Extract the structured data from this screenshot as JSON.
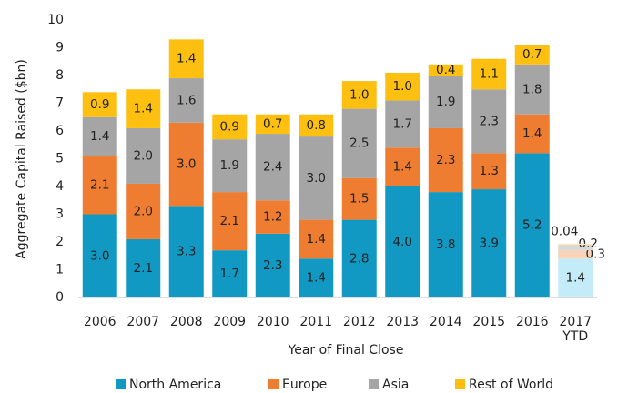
{
  "chart_data": {
    "type": "stacked_bar",
    "x_label": "Year of Final Close",
    "y_label": "Aggregate Capital Raised ($bn)",
    "categories": [
      "2006",
      "2007",
      "2008",
      "2009",
      "2010",
      "2011",
      "2012",
      "2013",
      "2014",
      "2015",
      "2016",
      "2017 YTD"
    ],
    "ylim": [
      0,
      10
    ],
    "yticks": [
      0,
      1,
      2,
      3,
      4,
      5,
      6,
      7,
      8,
      9,
      10
    ],
    "grid": false,
    "legend": "bottom",
    "series": [
      {
        "name": "North America",
        "color": "#1199c4",
        "colors": [
          "#1199c4",
          "#1199c4",
          "#1199c4",
          "#1199c4",
          "#1199c4",
          "#1199c4",
          "#1199c4",
          "#1199c4",
          "#1199c4",
          "#1199c4",
          "#1199c4",
          "#c4ecf8"
        ],
        "values": [
          3.0,
          2.1,
          3.3,
          1.7,
          2.3,
          1.4,
          2.8,
          4.0,
          3.8,
          3.9,
          5.2,
          1.4
        ],
        "value_labels": [
          "3.0",
          "2.1",
          "3.3",
          "1.7",
          "2.3",
          "1.4",
          "2.8",
          "4.0",
          "3.8",
          "3.9",
          "5.2",
          "1.4"
        ]
      },
      {
        "name": "Europe",
        "color": "#ef7d31",
        "colors": [
          "#ef7d31",
          "#ef7d31",
          "#ef7d31",
          "#ef7d31",
          "#ef7d31",
          "#ef7d31",
          "#ef7d31",
          "#ef7d31",
          "#ef7d31",
          "#ef7d31",
          "#ef7d31",
          "#f8d3b8"
        ],
        "values": [
          2.1,
          2.0,
          3.0,
          2.1,
          1.2,
          1.4,
          1.5,
          1.4,
          2.3,
          1.3,
          1.4,
          0.3
        ],
        "value_labels": [
          "2.1",
          "2.0",
          "3.0",
          "2.1",
          "1.2",
          "1.4",
          "1.5",
          "1.4",
          "2.3",
          "1.3",
          "1.4",
          "0.3"
        ]
      },
      {
        "name": "Asia",
        "color": "#a5a5a5",
        "colors": [
          "#a5a5a5",
          "#a5a5a5",
          "#a5a5a5",
          "#a5a5a5",
          "#a5a5a5",
          "#a5a5a5",
          "#a5a5a5",
          "#a5a5a5",
          "#a5a5a5",
          "#a5a5a5",
          "#a5a5a5",
          "#d9d9d9"
        ],
        "values": [
          1.4,
          2.0,
          1.6,
          1.9,
          2.4,
          3.0,
          2.5,
          1.7,
          1.9,
          2.3,
          1.8,
          0.2
        ],
        "value_labels": [
          "1.4",
          "2.0",
          "1.6",
          "1.9",
          "2.4",
          "3.0",
          "2.5",
          "1.7",
          "1.9",
          "2.3",
          "1.8",
          "0.2"
        ]
      },
      {
        "name": "Rest of World",
        "color": "#fdc010",
        "colors": [
          "#fdc010",
          "#fdc010",
          "#fdc010",
          "#fdc010",
          "#fdc010",
          "#fdc010",
          "#fdc010",
          "#fdc010",
          "#fdc010",
          "#fdc010",
          "#fdc010",
          "#fde9a8"
        ],
        "values": [
          0.9,
          1.4,
          1.4,
          0.9,
          0.7,
          0.8,
          1.0,
          1.0,
          0.4,
          1.1,
          0.7,
          0.04
        ],
        "value_labels": [
          "0.9",
          "1.4",
          "1.4",
          "0.9",
          "0.7",
          "0.8",
          "1.0",
          "1.0",
          "0.4",
          "1.1",
          "0.7",
          "0.04"
        ]
      }
    ]
  }
}
